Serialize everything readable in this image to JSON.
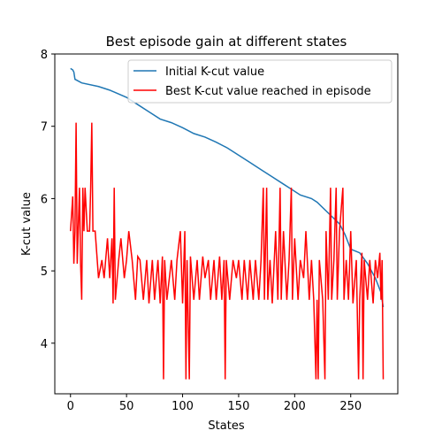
{
  "chart_data": {
    "type": "line",
    "title": "Best episode gain at different states",
    "xlabel": "States",
    "ylabel": "K-cut value",
    "xlim": [
      -14,
      292
    ],
    "ylim": [
      3.3,
      8
    ],
    "xticks": [
      0,
      50,
      100,
      150,
      200,
      250
    ],
    "yticks": [
      4,
      5,
      6,
      7,
      8
    ],
    "legend": "upper right",
    "series": [
      {
        "name": "Initial K-cut value",
        "color": "#1f77b4",
        "x": [
          0,
          2,
          3,
          4,
          10,
          25,
          35,
          50,
          60,
          70,
          80,
          90,
          100,
          110,
          120,
          130,
          140,
          150,
          160,
          170,
          180,
          190,
          195,
          205,
          215,
          220,
          230,
          240,
          245,
          250,
          258,
          265,
          272,
          277,
          279
        ],
        "values": [
          7.8,
          7.78,
          7.75,
          7.65,
          7.6,
          7.55,
          7.5,
          7.4,
          7.3,
          7.2,
          7.1,
          7.05,
          6.98,
          6.9,
          6.85,
          6.78,
          6.7,
          6.6,
          6.5,
          6.4,
          6.3,
          6.2,
          6.15,
          6.05,
          6.0,
          5.95,
          5.8,
          5.65,
          5.5,
          5.3,
          5.25,
          5.1,
          4.9,
          4.7,
          4.5
        ]
      },
      {
        "name": "Best K-cut value reached in episode",
        "color": "#ff0000",
        "x": [
          0,
          2,
          3,
          4,
          5,
          6,
          8,
          9,
          10,
          11,
          12,
          13,
          15,
          17,
          18,
          19,
          20,
          22,
          25,
          28,
          30,
          33,
          35,
          37,
          38,
          39,
          40,
          43,
          45,
          48,
          50,
          52,
          55,
          58,
          60,
          62,
          65,
          68,
          70,
          73,
          75,
          78,
          80,
          82,
          83,
          84,
          86,
          90,
          93,
          95,
          98,
          100,
          102,
          103,
          104,
          106,
          107,
          110,
          113,
          115,
          118,
          120,
          123,
          125,
          128,
          130,
          133,
          135,
          137,
          138,
          139,
          142,
          145,
          148,
          150,
          153,
          155,
          158,
          160,
          163,
          165,
          168,
          170,
          172,
          173,
          175,
          176,
          178,
          180,
          183,
          185,
          187,
          188,
          190,
          193,
          195,
          197,
          198,
          200,
          203,
          205,
          208,
          210,
          213,
          215,
          217,
          219,
          220,
          221,
          222,
          225,
          227,
          228,
          230,
          232,
          233,
          235,
          237,
          238,
          240,
          243,
          244,
          246,
          248,
          250,
          252,
          255,
          257,
          258,
          260,
          261,
          262,
          265,
          267,
          270,
          272,
          274,
          276,
          277,
          278,
          279
        ],
        "values": [
          5.55,
          6.03,
          5.1,
          5.55,
          7.05,
          5.1,
          6.15,
          5.1,
          4.6,
          6.15,
          5.55,
          6.15,
          5.55,
          5.55,
          6.15,
          7.05,
          5.55,
          5.55,
          4.9,
          5.15,
          4.9,
          5.45,
          4.9,
          5.45,
          4.55,
          6.15,
          4.6,
          5.15,
          5.45,
          4.9,
          5.15,
          5.55,
          5.15,
          4.6,
          5.2,
          5.15,
          4.6,
          5.15,
          4.55,
          5.15,
          4.6,
          5.15,
          4.55,
          5.2,
          3.5,
          5.15,
          4.6,
          5.15,
          4.6,
          5.15,
          5.55,
          4.55,
          5.55,
          3.5,
          5.15,
          3.5,
          5.2,
          4.6,
          5.15,
          4.6,
          5.2,
          4.9,
          5.15,
          4.6,
          5.15,
          4.6,
          5.2,
          4.6,
          5.15,
          3.5,
          5.15,
          4.6,
          5.15,
          4.9,
          5.15,
          4.6,
          5.15,
          4.6,
          5.15,
          4.6,
          5.15,
          4.6,
          5.15,
          6.15,
          4.6,
          6.15,
          4.6,
          5.15,
          4.55,
          5.55,
          4.6,
          6.15,
          4.6,
          5.55,
          4.6,
          5.15,
          6.15,
          4.6,
          5.45,
          4.6,
          5.15,
          4.9,
          5.55,
          4.6,
          5.15,
          4.6,
          3.5,
          4.6,
          3.5,
          5.15,
          4.6,
          3.5,
          5.55,
          4.6,
          6.15,
          4.6,
          5.15,
          6.15,
          4.6,
          5.55,
          6.15,
          4.6,
          5.15,
          4.6,
          5.55,
          4.55,
          5.15,
          3.5,
          4.6,
          5.25,
          3.5,
          5.15,
          4.6,
          5.15,
          4.55,
          5.15,
          4.9,
          5.25,
          4.6,
          5.15,
          3.5
        ]
      }
    ]
  }
}
